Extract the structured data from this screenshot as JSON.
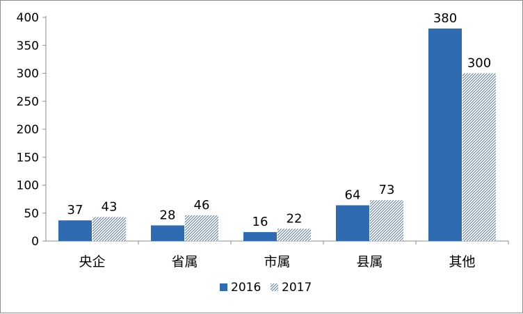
{
  "chart_data": {
    "type": "bar",
    "categories": [
      "央企",
      "省属",
      "市属",
      "县属",
      "其他"
    ],
    "series": [
      {
        "name": "2016",
        "values": [
          37,
          28,
          16,
          64,
          380
        ],
        "color": "#2e6bb1",
        "style": "solid"
      },
      {
        "name": "2017",
        "values": [
          43,
          46,
          22,
          73,
          300
        ],
        "color": "#2e6bb1",
        "style": "hatched"
      }
    ],
    "yticks": [
      "0",
      "50",
      "100",
      "150",
      "200",
      "250",
      "300",
      "350",
      "400"
    ],
    "ylim": [
      0,
      400
    ],
    "grid": false,
    "legend_position": "bottom",
    "data_labels": true
  }
}
